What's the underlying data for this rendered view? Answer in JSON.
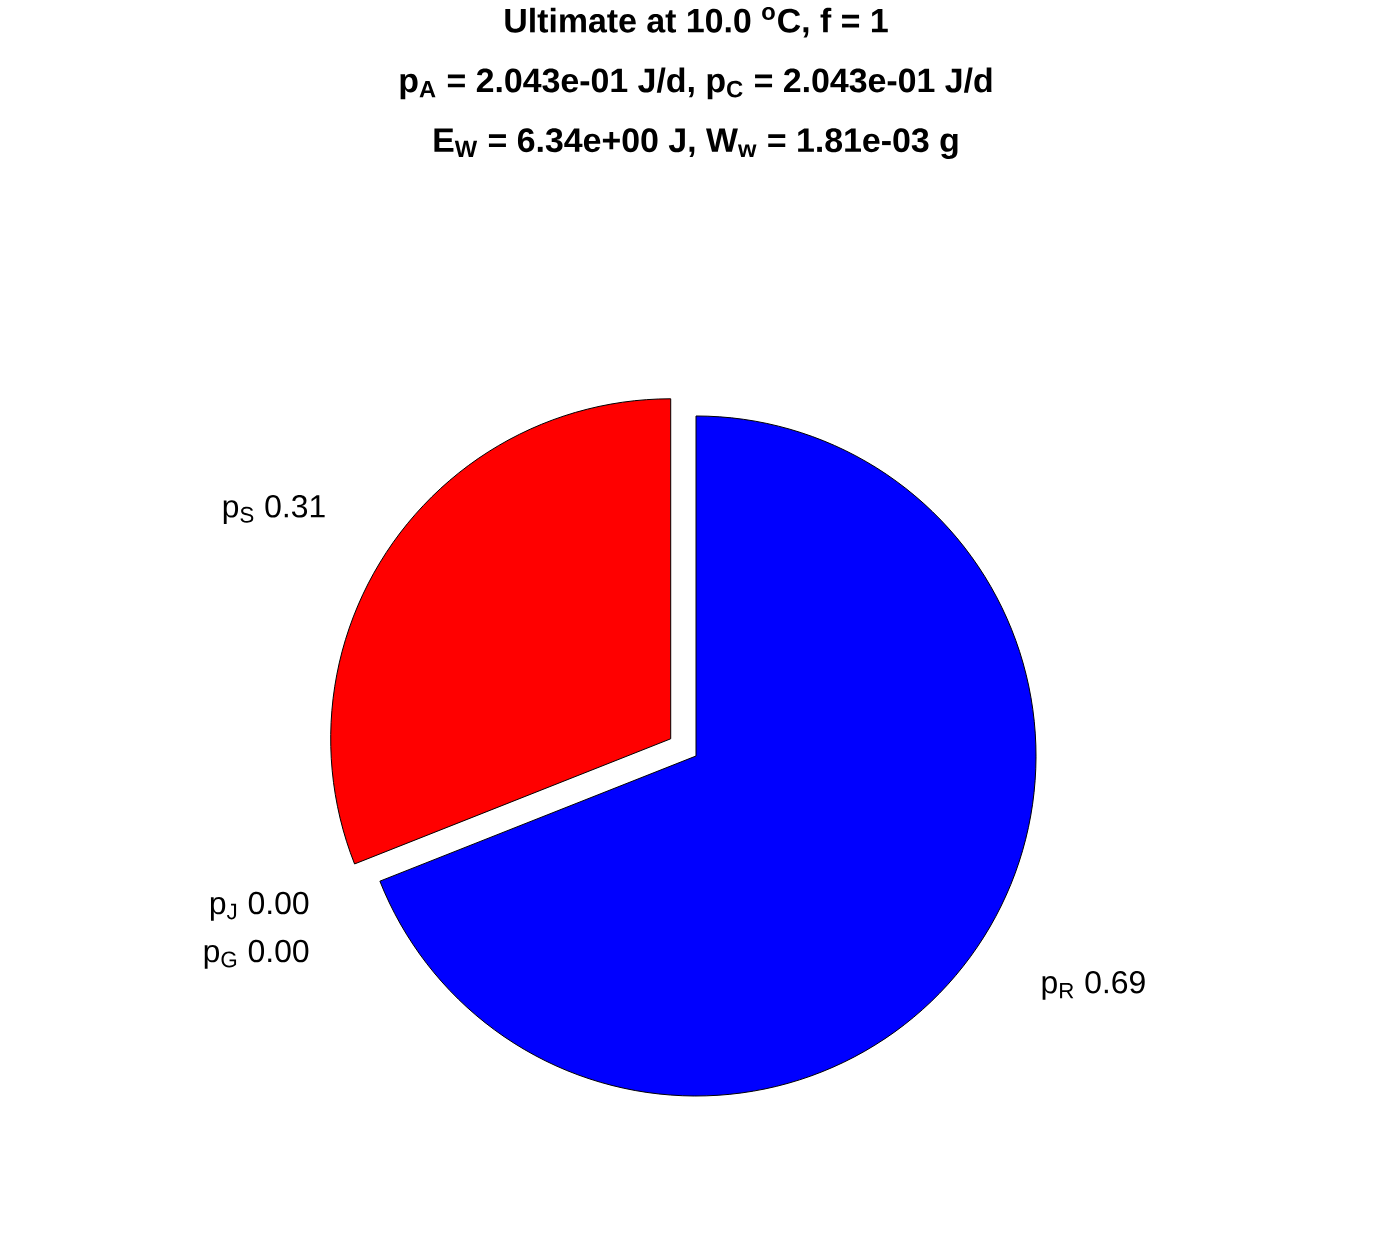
{
  "chart_data": {
    "type": "pie",
    "title": "Ultimate at 10.0 $^{o}$C, f = 1",
    "subtitle": "p$_{A}$ = 2.043e-01 J/d, p$_{C}$ = 2.043e-01 J/d",
    "annotations": [
      "E$_{W}$ = 6.34e+00 J, W$_{w}$ = 1.81e-03 g"
    ],
    "categories": [
      "p$_{S}$",
      "p$_{J}$",
      "p$_{G}$",
      "p$_{R}$"
    ],
    "values": [
      0.31,
      0,
      0,
      0.69
    ],
    "value_labels": [
      "0.31",
      "0.00",
      "0.00",
      "0.69"
    ],
    "colors": [
      "#ff0000",
      "#00ff00",
      "#ffff00",
      "#0000ff"
    ]
  }
}
